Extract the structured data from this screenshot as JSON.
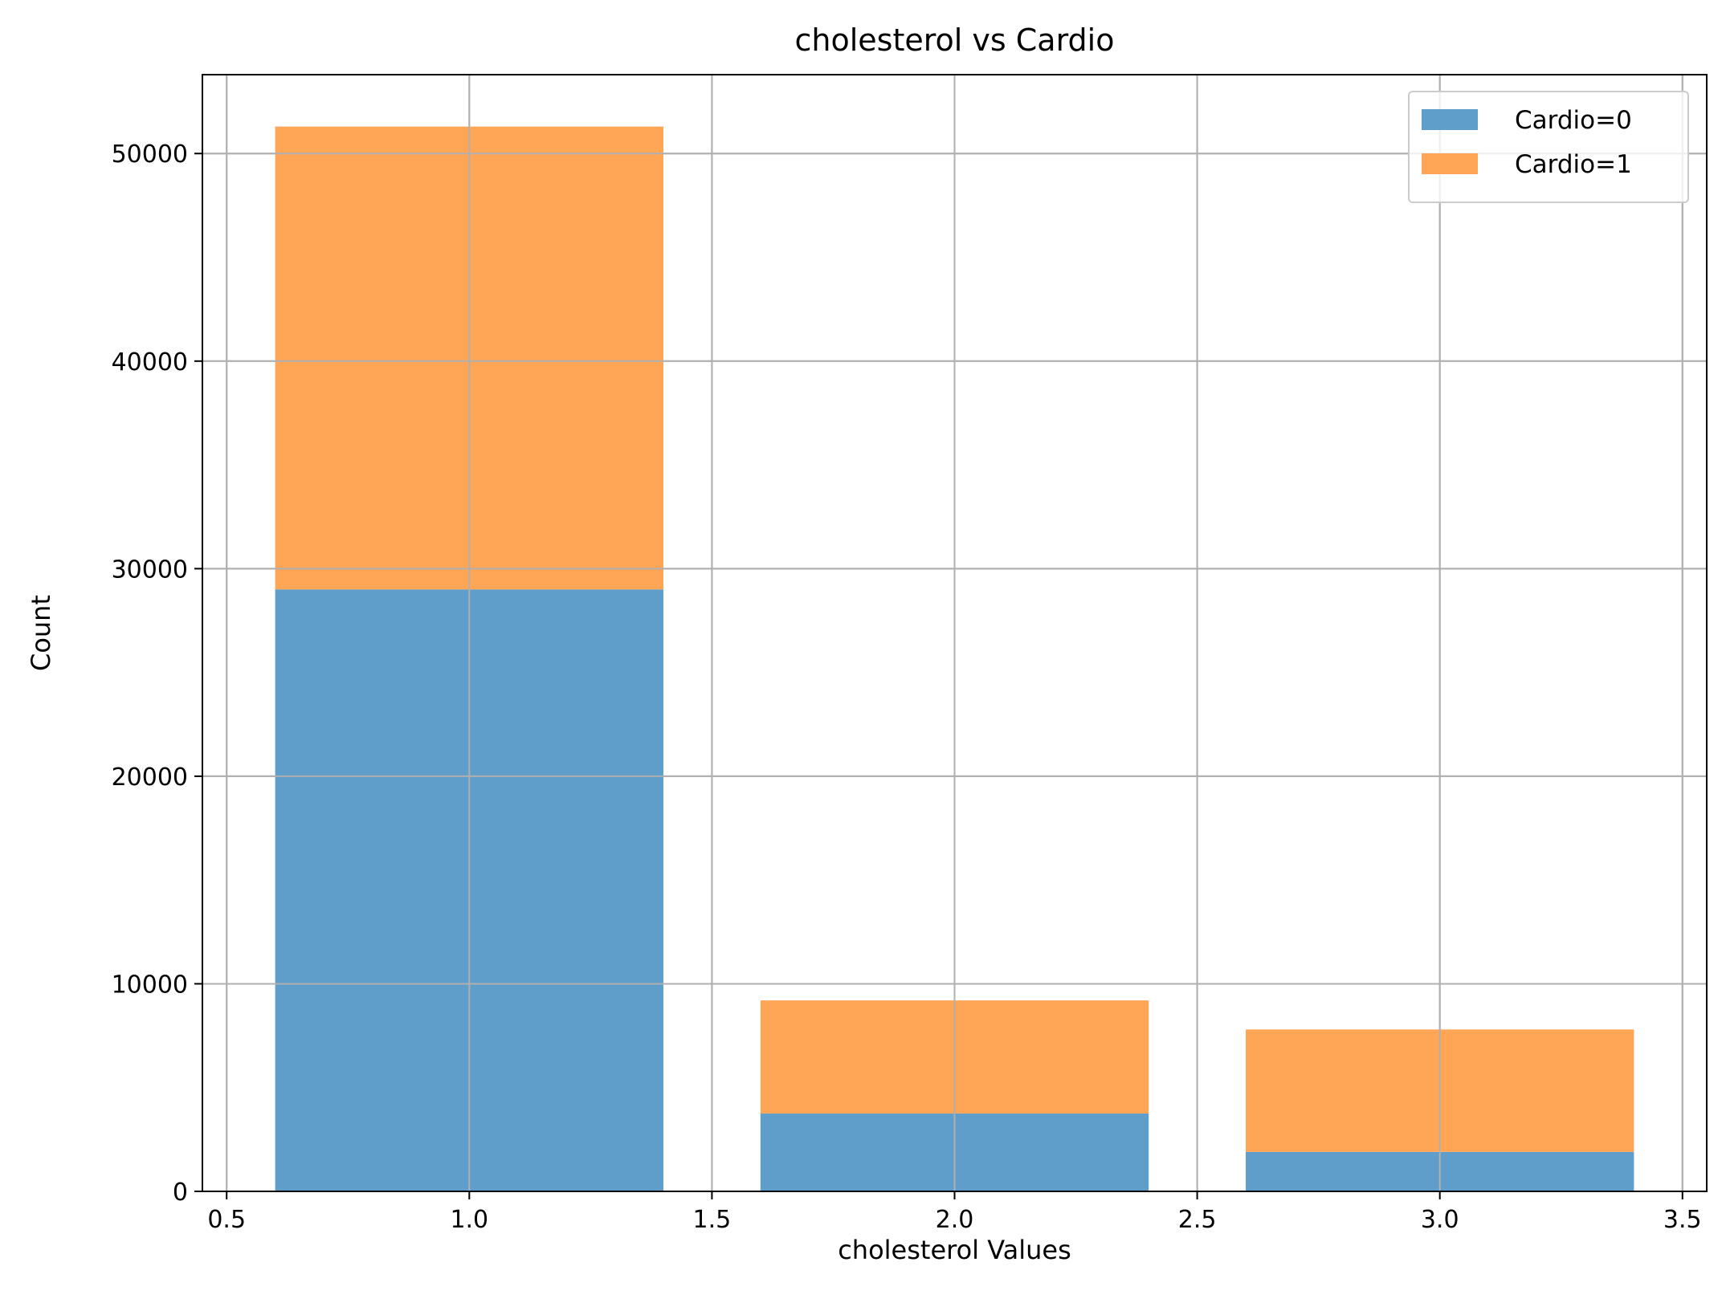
{
  "chart_data": {
    "type": "bar",
    "stacked": true,
    "title": "cholesterol vs Cardio",
    "xlabel": "cholesterol Values",
    "ylabel": "Count",
    "x": [
      1,
      2,
      3
    ],
    "bar_width": 0.8,
    "series": [
      {
        "name": "Cardio=0",
        "color": "#5f9ecb",
        "values": [
          29000,
          3750,
          1900
        ]
      },
      {
        "name": "Cardio=1",
        "color": "#ffa556",
        "values": [
          22300,
          5450,
          5900
        ]
      }
    ],
    "xlim": [
      0.45,
      3.55
    ],
    "ylim": [
      0,
      53800
    ],
    "xticks": [
      0.5,
      1.0,
      1.5,
      2.0,
      2.5,
      3.0,
      3.5
    ],
    "xtick_labels": [
      "0.5",
      "1.0",
      "1.5",
      "2.0",
      "2.5",
      "3.0",
      "3.5"
    ],
    "yticks": [
      0,
      10000,
      20000,
      30000,
      40000,
      50000
    ],
    "ytick_labels": [
      "0",
      "10000",
      "20000",
      "30000",
      "40000",
      "50000"
    ],
    "grid": true,
    "legend_position": "top-right"
  }
}
